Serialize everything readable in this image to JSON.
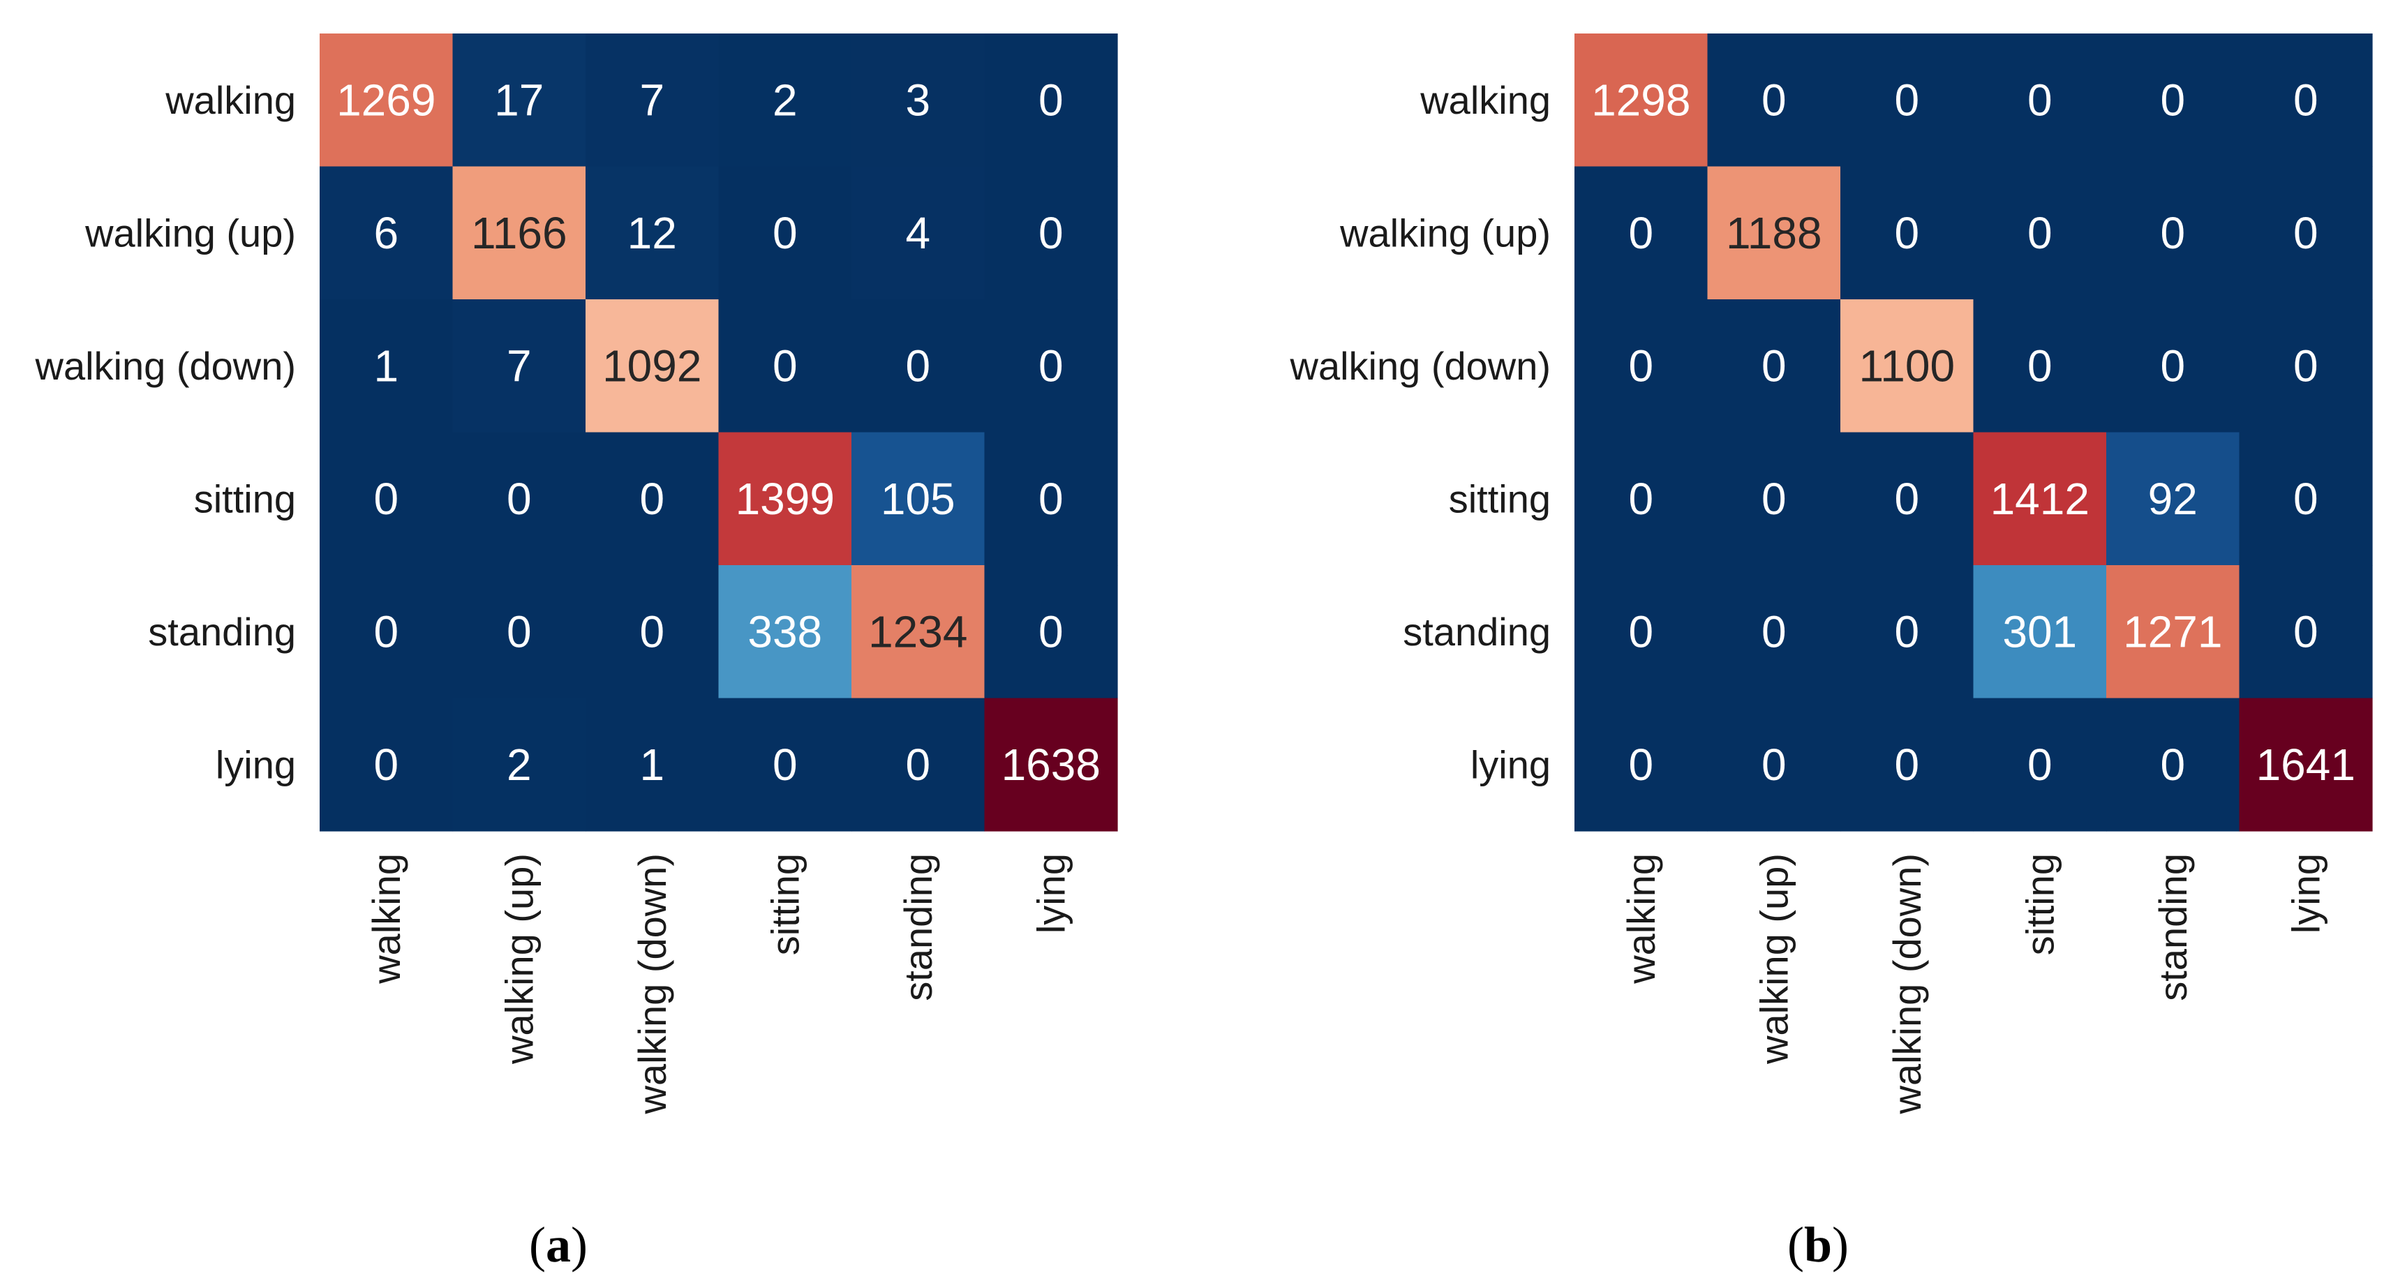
{
  "chart_data": [
    {
      "type": "heatmap",
      "caption": {
        "open": "(",
        "letter": "a",
        "close": ")"
      },
      "row_labels": [
        "walking",
        "walking (up)",
        "walking (down)",
        "sitting",
        "standing",
        "lying"
      ],
      "col_labels": [
        "walking",
        "walking (up)",
        "walking (down)",
        "sitting",
        "standing",
        "lying"
      ],
      "values": [
        [
          1269,
          17,
          7,
          2,
          3,
          0
        ],
        [
          6,
          1166,
          12,
          0,
          4,
          0
        ],
        [
          1,
          7,
          1092,
          0,
          0,
          0
        ],
        [
          0,
          0,
          0,
          1399,
          105,
          0
        ],
        [
          0,
          0,
          0,
          338,
          1234,
          0
        ],
        [
          0,
          2,
          1,
          0,
          0,
          1638
        ]
      ],
      "colorbar": "none",
      "colormap": "RdBu_r"
    },
    {
      "type": "heatmap",
      "caption": {
        "open": "(",
        "letter": "b",
        "close": ")"
      },
      "row_labels": [
        "walking",
        "walking (up)",
        "walking (down)",
        "sitting",
        "standing",
        "lying"
      ],
      "col_labels": [
        "walking",
        "walking (up)",
        "walking (down)",
        "sitting",
        "standing",
        "lying"
      ],
      "values": [
        [
          1298,
          0,
          0,
          0,
          0,
          0
        ],
        [
          0,
          1188,
          0,
          0,
          0,
          0
        ],
        [
          0,
          0,
          1100,
          0,
          0,
          0
        ],
        [
          0,
          0,
          0,
          1412,
          92,
          0
        ],
        [
          0,
          0,
          0,
          301,
          1271,
          0
        ],
        [
          0,
          0,
          0,
          0,
          0,
          1641
        ]
      ],
      "colorbar": "none",
      "colormap": "RdBu_r"
    }
  ]
}
